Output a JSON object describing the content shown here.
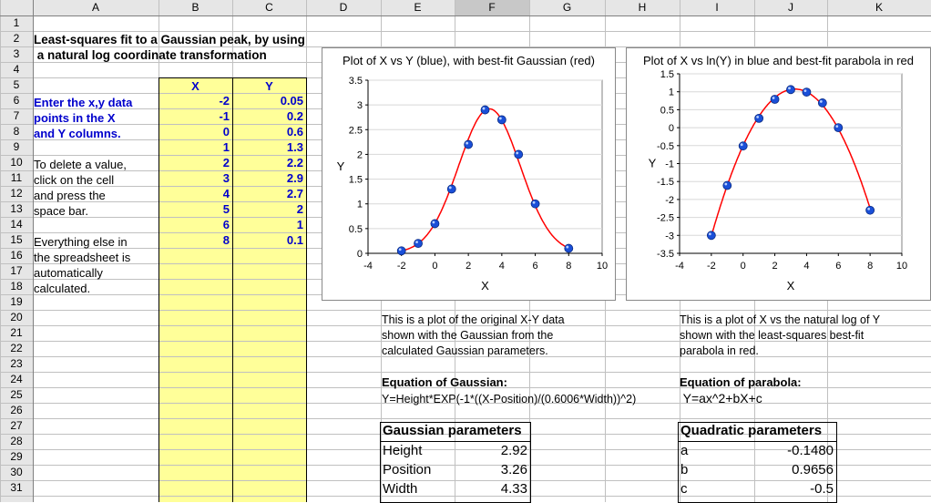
{
  "columns": [
    "A",
    "B",
    "C",
    "D",
    "E",
    "F",
    "G",
    "H",
    "I",
    "J",
    "K"
  ],
  "rows": [
    "1",
    "2",
    "3",
    "4",
    "5",
    "6",
    "7",
    "8",
    "9",
    "10",
    "11",
    "12",
    "13",
    "14",
    "15",
    "16",
    "17",
    "18",
    "19",
    "20",
    "21",
    "22",
    "23",
    "24",
    "25",
    "26",
    "27",
    "28",
    "29",
    "30",
    "31"
  ],
  "title_line1": "Least-squares fit to a Gaussian peak, by using",
  "title_line2": " a natural log coordinate transformation",
  "headers": {
    "x": "X",
    "y": "Y"
  },
  "data_x": [
    "-2",
    "-1",
    "0",
    "1",
    "2",
    "3",
    "4",
    "5",
    "6",
    "8"
  ],
  "data_y": [
    "0.05",
    "0.2",
    "0.6",
    "1.3",
    "2.2",
    "2.9",
    "2.7",
    "2",
    "1",
    "0.1"
  ],
  "instructions": {
    "l1": "Enter the x,y data",
    "l2": "points in the X",
    "l3": "and Y columns.",
    "l4": "To delete a value,",
    "l5": "click on the cell",
    "l6": "and press the",
    "l7": "space bar.",
    "l8": "Everything else in",
    "l9": "the spreadsheet is",
    "l10": "automatically",
    "l11": "calculated."
  },
  "desc_left": [
    "This is a plot of the original X-Y data",
    "shown with the Gaussian from the",
    "calculated Gaussian parameters."
  ],
  "desc_right": [
    "This is a plot of X vs the natural log of Y",
    "shown with the least-squares best-fit",
    "parabola in red."
  ],
  "eq_gauss_label": "Equation of Gaussian:",
  "eq_gauss": "Y=Height*EXP(-1*((X-Position)/(0.6006*Width))^2)",
  "eq_parab_label": "Equation of parabola:",
  "eq_parab": " Y=ax^2+bX+c",
  "gauss_params": {
    "title": "Gaussian parameters",
    "rows": [
      [
        "Height",
        "2.92"
      ],
      [
        "Position",
        "3.26"
      ],
      [
        "Width",
        "4.33"
      ]
    ]
  },
  "quad_params": {
    "title": "Quadratic parameters",
    "rows": [
      [
        "a",
        "-0.1480"
      ],
      [
        "b",
        "0.9656"
      ],
      [
        "c",
        "-0.5"
      ]
    ]
  },
  "colors": {
    "fill_yellow": "#ffff99",
    "point_blue": "#1a4fd8",
    "curve_red": "#ff0000",
    "header_gray": "#e6e6e6"
  },
  "chart_data": [
    {
      "type": "scatter",
      "title": "Plot of X vs Y (blue), with best-fit Gaussian (red)",
      "xlabel": "X",
      "ylabel": "Y",
      "xlim": [
        -4,
        10
      ],
      "ylim": [
        0,
        3.5
      ],
      "xticks": [
        "-4",
        "-2",
        "0",
        "2",
        "4",
        "6",
        "8",
        "10"
      ],
      "yticks": [
        "0",
        "0.5",
        "1",
        "1.5",
        "2",
        "2.5",
        "3",
        "3.5"
      ],
      "series": [
        {
          "x": [
            -2,
            -1,
            0,
            1,
            2,
            3,
            4,
            5,
            6,
            8
          ],
          "y": [
            0.05,
            0.2,
            0.6,
            1.3,
            2.2,
            2.9,
            2.7,
            2,
            1,
            0.1
          ]
        }
      ],
      "fit": {
        "kind": "gaussian",
        "height": 2.92,
        "position": 3.26,
        "width": 4.33
      }
    },
    {
      "type": "scatter",
      "title": "Plot of X vs ln(Y) in blue and best-fit parabola in red",
      "xlabel": "X",
      "ylabel": "Y",
      "xlim": [
        -4,
        10
      ],
      "ylim": [
        -3.5,
        1.5
      ],
      "xticks": [
        "-4",
        "-2",
        "0",
        "2",
        "4",
        "6",
        "8",
        "10"
      ],
      "yticks": [
        "-3.5",
        "-3",
        "-2.5",
        "-2",
        "-1.5",
        "-1",
        "-0.5",
        "0",
        "0.5",
        "1",
        "1.5"
      ],
      "series": [
        {
          "x": [
            -2,
            -1,
            0,
            1,
            2,
            3,
            4,
            5,
            6,
            8
          ],
          "y": [
            -3.0,
            -1.61,
            -0.51,
            0.26,
            0.79,
            1.06,
            0.99,
            0.69,
            0.0,
            -2.3
          ]
        }
      ],
      "fit": {
        "kind": "parabola",
        "a": -0.148,
        "b": 0.9656,
        "c": -0.5
      }
    }
  ]
}
